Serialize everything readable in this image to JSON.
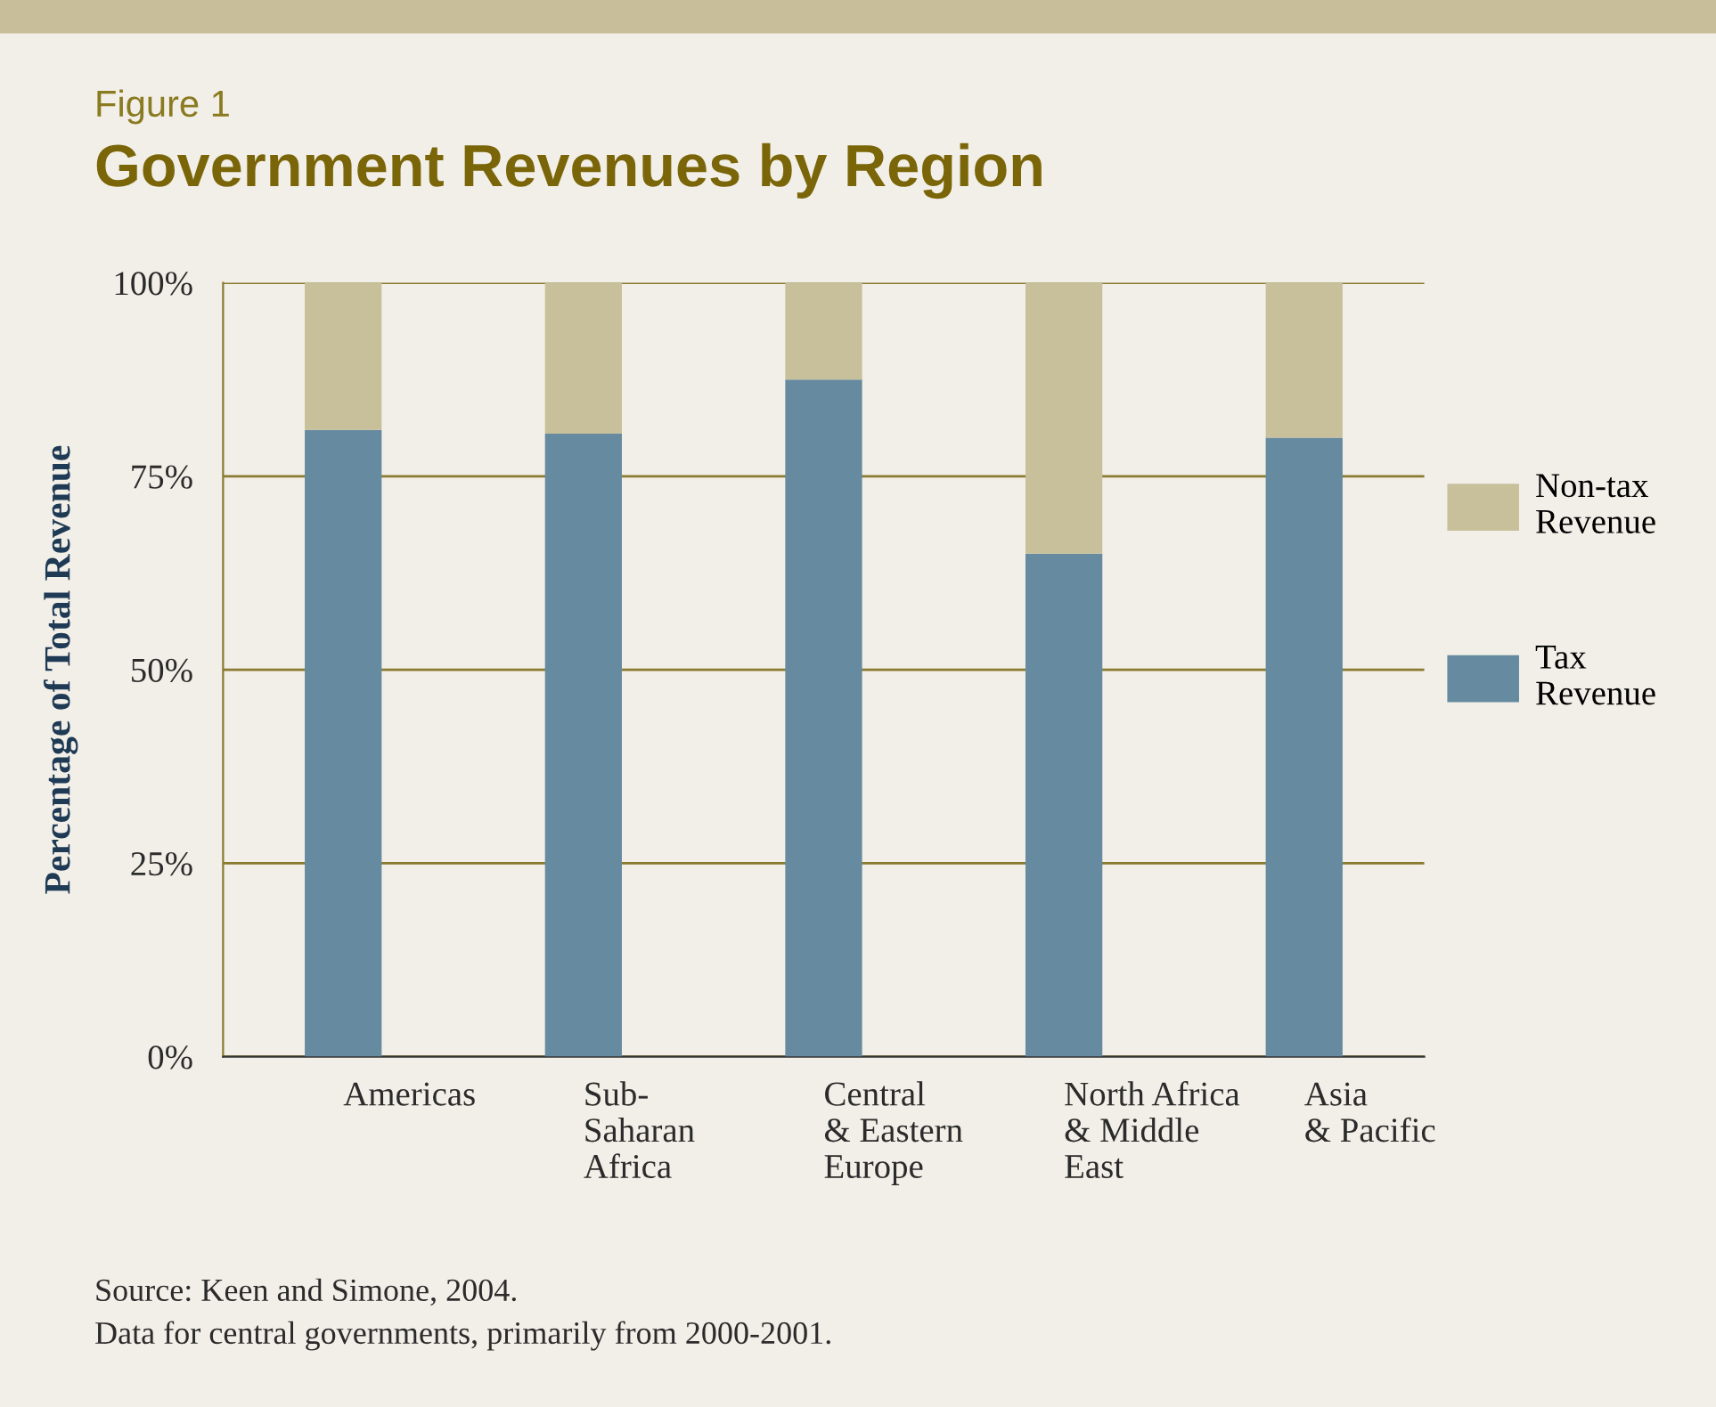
{
  "chart_data": {
    "type": "bar",
    "stacked": true,
    "subtitle": "Figure 1",
    "title": "Government Revenues by Region",
    "ylabel": "Percentage of Total Revenue",
    "categories": [
      "Americas",
      "Sub-\nSaharan\nAfrica",
      "Central\n& Eastern\nEurope",
      "North Africa\n& Middle\nEast",
      "Asia\n& Pacific"
    ],
    "series": [
      {
        "name": "Tax\nRevenue",
        "color": "#668ba0",
        "values": [
          81,
          80.5,
          87.5,
          65,
          80
        ]
      },
      {
        "name": "Non-tax\nRevenue",
        "color": "#c8c09a",
        "values": [
          19,
          19.5,
          12.5,
          35,
          20
        ]
      }
    ],
    "ylim": [
      0,
      100
    ],
    "yticks": [
      {
        "value": 0,
        "label": "0%"
      },
      {
        "value": 25,
        "label": "25%"
      },
      {
        "value": 50,
        "label": "50%"
      },
      {
        "value": 75,
        "label": "75%"
      },
      {
        "value": 100,
        "label": "100%"
      }
    ],
    "grid": "y",
    "legend": "right",
    "annotations": [
      "Source: Keen and Simone, 2004.",
      "Data for central governments, primarily from 2000-2001."
    ]
  }
}
